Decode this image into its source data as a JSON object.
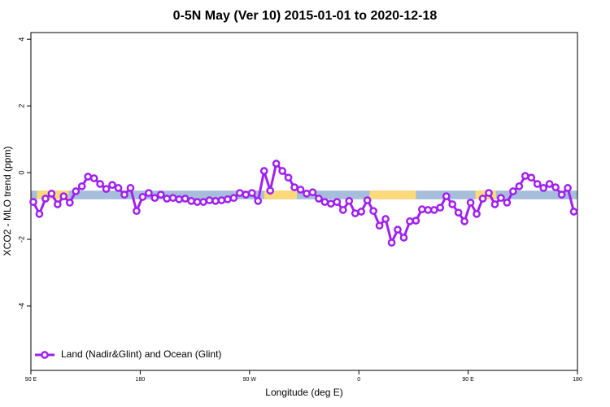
{
  "chart_data": {
    "type": "line",
    "title": "0-5N May (Ver 10)   2015-01-01 to 2020-12-18",
    "x_label": "Longitude (deg E)",
    "y_label": "XCO2 - MLO trend (ppm)",
    "xlim": [
      90,
      540
    ],
    "ylim": [
      -5.93,
      4.2
    ],
    "xticks": [
      {
        "value": 90,
        "label": "90 E"
      },
      180,
      {
        "value": 270,
        "label": "90 W"
      },
      {
        "value": 360,
        "label": "0"
      },
      {
        "value": 450,
        "label": "90 E"
      },
      {
        "value": 540,
        "label": "180"
      }
    ],
    "yticks": [
      4,
      2,
      0,
      -2,
      -4
    ],
    "legend": "bottom-left",
    "band": {
      "y": [
        -0.8,
        -0.54
      ],
      "segments": [
        {
          "x": [
            90,
            540
          ],
          "color": "#a6bddb"
        },
        {
          "x": [
            95,
            121
          ],
          "color": "#fcd97a"
        },
        {
          "x": [
            282,
            309
          ],
          "color": "#fcd97a"
        },
        {
          "x": [
            369,
            407
          ],
          "color": "#fcd97a"
        },
        {
          "x": [
            456,
            473
          ],
          "color": "#fcd97a"
        }
      ]
    },
    "x": [
      92,
      97,
      102,
      107,
      112,
      117,
      122,
      127,
      132,
      137,
      142,
      147,
      152,
      157,
      162,
      167,
      172,
      177,
      182,
      187,
      192,
      197,
      202,
      207,
      212,
      217,
      222,
      227,
      232,
      237,
      242,
      247,
      252,
      257,
      262,
      267,
      272,
      277,
      282,
      287,
      292,
      297,
      302,
      307,
      312,
      317,
      322,
      327,
      332,
      337,
      342,
      347,
      352,
      357,
      362,
      367,
      372,
      377,
      382,
      387,
      392,
      397,
      402,
      407,
      412,
      417,
      422,
      427,
      432,
      437,
      442,
      447,
      452,
      457,
      462,
      467,
      472,
      477,
      482,
      487,
      492,
      497,
      502,
      507,
      512,
      517,
      522,
      527,
      532,
      537
    ],
    "series": [
      {
        "name": "Land (Nadir&Glint) and Ocean (Glint)",
        "color": "#a020f0",
        "values": [
          -0.88,
          -1.24,
          -0.78,
          -0.63,
          -0.95,
          -0.71,
          -0.9,
          -0.56,
          -0.41,
          -0.12,
          -0.17,
          -0.34,
          -0.49,
          -0.37,
          -0.46,
          -0.66,
          -0.46,
          -1.15,
          -0.73,
          -0.61,
          -0.76,
          -0.66,
          -0.78,
          -0.76,
          -0.8,
          -0.78,
          -0.85,
          -0.88,
          -0.88,
          -0.83,
          -0.85,
          -0.83,
          -0.8,
          -0.76,
          -0.61,
          -0.66,
          -0.61,
          -0.85,
          0.05,
          -0.54,
          0.27,
          0.05,
          -0.15,
          -0.44,
          -0.51,
          -0.63,
          -0.59,
          -0.78,
          -0.88,
          -0.93,
          -0.88,
          -1.12,
          -0.85,
          -1.22,
          -1.17,
          -0.83,
          -1.15,
          -1.59,
          -1.39,
          -2.1,
          -1.71,
          -1.95,
          -1.46,
          -1.44,
          -1.1,
          -1.12,
          -1.12,
          -1.05,
          -0.71,
          -0.95,
          -1.2,
          -1.46,
          -0.9,
          -1.24,
          -0.78,
          -0.61,
          -0.95,
          -0.76,
          -0.9,
          -0.56,
          -0.41,
          -0.1,
          -0.15,
          -0.34,
          -0.46,
          -0.34,
          -0.44,
          -0.66,
          -0.46,
          -1.17
        ]
      }
    ]
  }
}
